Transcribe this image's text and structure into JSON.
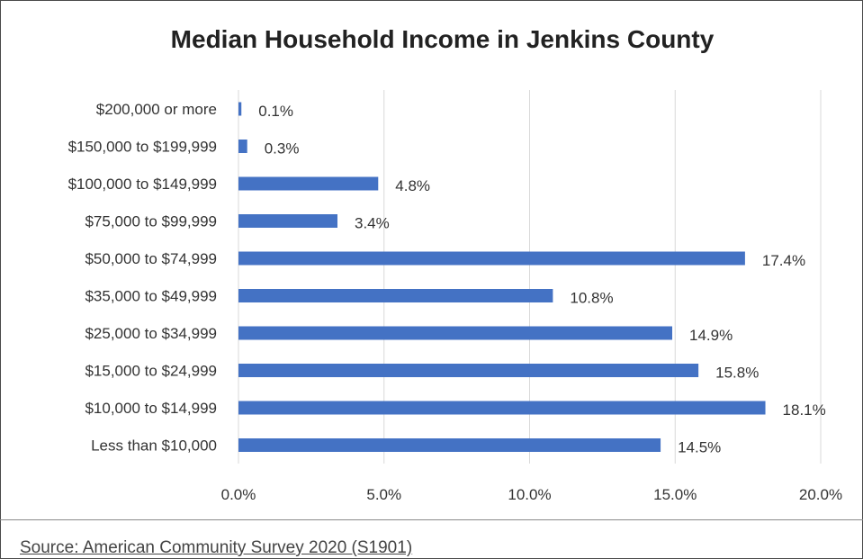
{
  "chart_data": {
    "type": "bar",
    "orientation": "horizontal",
    "title": "Median Household Income in Jenkins County",
    "categories": [
      "$200,000 or more",
      "$150,000 to $199,999",
      "$100,000 to $149,999",
      "$75,000 to $99,999",
      "$50,000 to $74,999",
      "$35,000 to $49,999",
      "$25,000 to $34,999",
      "$15,000 to $24,999",
      "$10,000 to $14,999",
      "Less than $10,000"
    ],
    "values": [
      0.1,
      0.3,
      4.8,
      3.4,
      17.4,
      10.8,
      14.9,
      15.8,
      18.1,
      14.5
    ],
    "value_labels": [
      "0.1%",
      "0.3%",
      "4.8%",
      "3.4%",
      "17.4%",
      "10.8%",
      "14.9%",
      "15.8%",
      "18.1%",
      "14.5%"
    ],
    "xlim": [
      0,
      20
    ],
    "xticks": [
      0,
      5,
      10,
      15,
      20
    ],
    "xtick_labels": [
      "0.0%",
      "5.0%",
      "10.0%",
      "15.0%",
      "20.0%"
    ],
    "grid": "vertical",
    "legend": "none",
    "bar_color": "#4472c4"
  },
  "source": "Source: American Community Survey 2020 (S1901)"
}
